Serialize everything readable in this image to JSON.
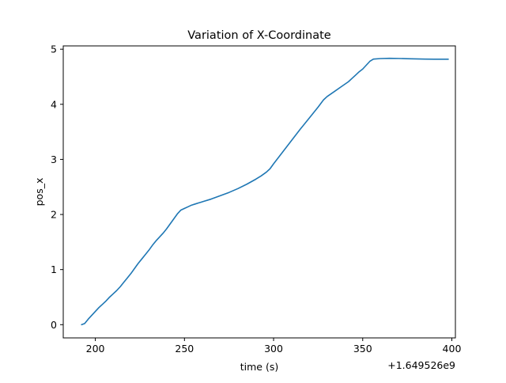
{
  "chart_data": {
    "type": "line",
    "title": "Variation of X-Coordinate",
    "xlabel": "time (s)",
    "ylabel": "pos_x",
    "x_offset_label": "+1.649526e9",
    "xlim": [
      182,
      402
    ],
    "ylim": [
      -0.24,
      5.06
    ],
    "xticks": [
      200,
      250,
      300,
      350,
      400
    ],
    "yticks": [
      0,
      1,
      2,
      3,
      4,
      5
    ],
    "grid": false,
    "line_color": "#1f77b4",
    "series": [
      {
        "x": [
          192.3,
          194,
          196,
          198,
          200,
          202,
          204,
          206,
          208,
          210,
          212,
          214,
          216,
          218,
          220,
          222,
          224,
          226,
          228,
          230,
          232,
          234,
          236,
          238,
          240,
          242,
          244,
          246,
          248,
          250,
          252,
          254,
          256,
          258,
          260,
          265,
          270,
          275,
          280,
          285,
          290,
          293,
          296,
          298,
          300,
          305,
          310,
          315,
          320,
          325,
          328,
          330,
          334,
          338,
          342,
          344,
          346,
          348,
          350,
          352,
          354,
          356,
          360,
          365,
          370,
          375,
          380,
          385,
          390,
          395,
          398
        ],
        "y": [
          0.0,
          0.02,
          0.1,
          0.17,
          0.24,
          0.31,
          0.37,
          0.43,
          0.5,
          0.56,
          0.62,
          0.69,
          0.77,
          0.85,
          0.93,
          1.02,
          1.11,
          1.19,
          1.27,
          1.35,
          1.44,
          1.52,
          1.59,
          1.66,
          1.74,
          1.83,
          1.92,
          2.01,
          2.08,
          2.11,
          2.14,
          2.17,
          2.19,
          2.21,
          2.23,
          2.28,
          2.34,
          2.4,
          2.47,
          2.55,
          2.64,
          2.7,
          2.77,
          2.83,
          2.92,
          3.13,
          3.34,
          3.55,
          3.75,
          3.95,
          4.08,
          4.14,
          4.23,
          4.32,
          4.41,
          4.47,
          4.53,
          4.59,
          4.64,
          4.71,
          4.78,
          4.82,
          4.83,
          4.835,
          4.832,
          4.828,
          4.824,
          4.82,
          4.818,
          4.818,
          4.818
        ]
      }
    ]
  }
}
